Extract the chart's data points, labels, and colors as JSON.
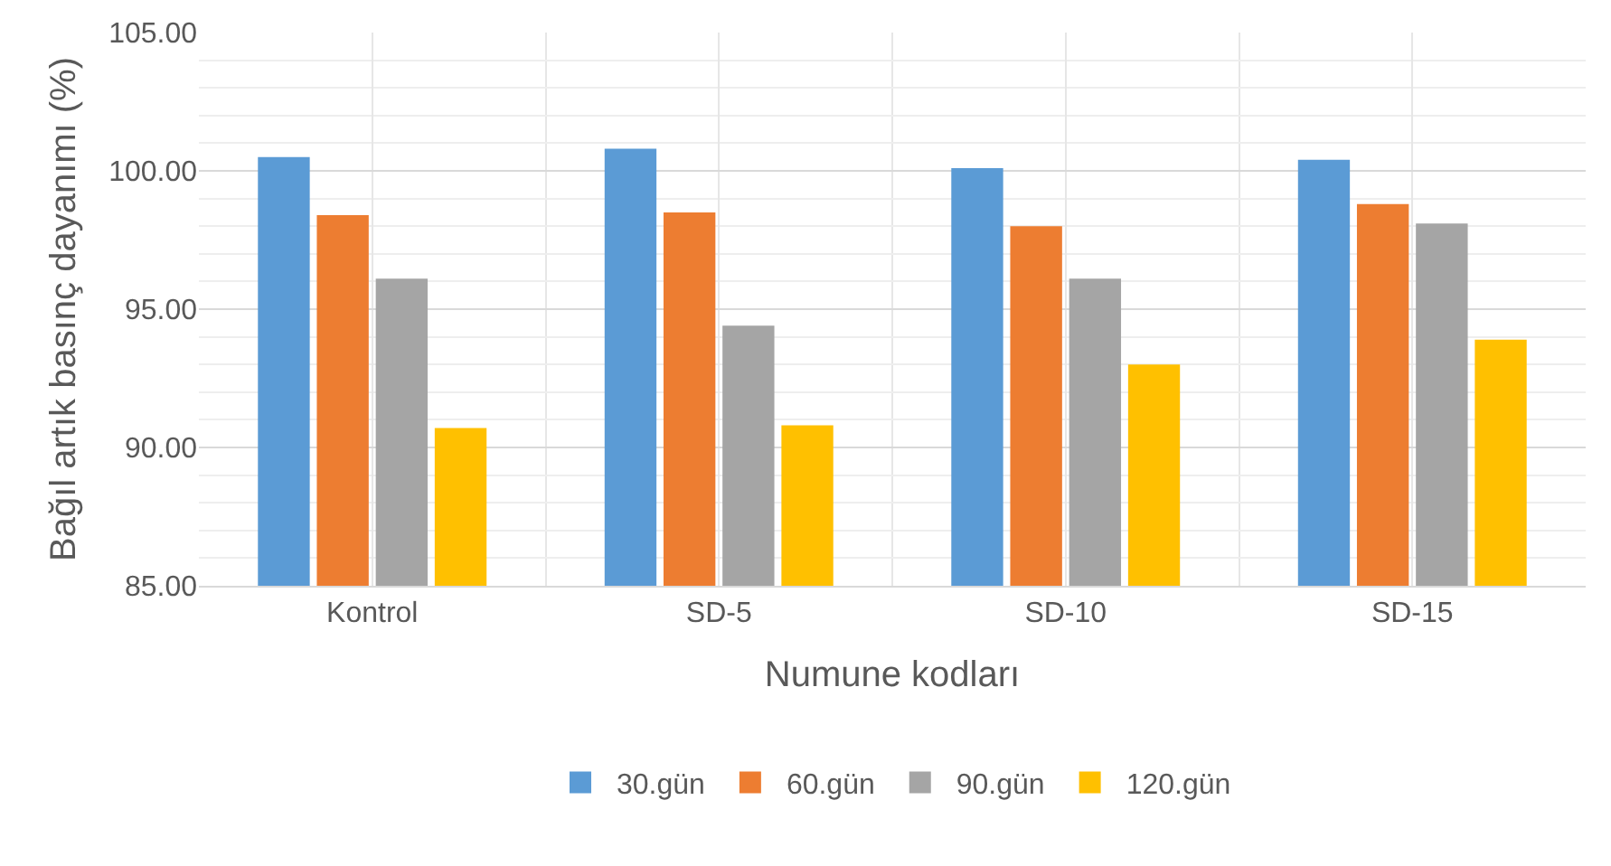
{
  "chart_data": {
    "type": "bar",
    "xlabel": "Numune kodları",
    "ylabel": "Bağıl artık basınç dayanımı (%)",
    "categories": [
      "Kontrol",
      "SD-5",
      "SD-10",
      "SD-15"
    ],
    "series": [
      {
        "name": "30.gün",
        "color": "#5b9bd5",
        "values": [
          100.5,
          100.8,
          100.1,
          100.4
        ]
      },
      {
        "name": "60.gün",
        "color": "#ed7d31",
        "values": [
          98.4,
          98.5,
          98.0,
          98.8
        ]
      },
      {
        "name": "90.gün",
        "color": "#a5a5a5",
        "values": [
          96.1,
          94.4,
          96.1,
          98.1
        ]
      },
      {
        "name": "120.gün",
        "color": "#ffc000",
        "values": [
          90.7,
          90.8,
          93.0,
          93.9
        ]
      }
    ],
    "ylim": [
      85,
      105
    ],
    "yticks": [
      {
        "value": 85,
        "label": "85.00"
      },
      {
        "value": 90,
        "label": "90.00"
      },
      {
        "value": 95,
        "label": "95.00"
      },
      {
        "value": 100,
        "label": "100.00"
      },
      {
        "value": 105,
        "label": "105.00"
      }
    ],
    "grid": true,
    "legend": "bottom"
  }
}
